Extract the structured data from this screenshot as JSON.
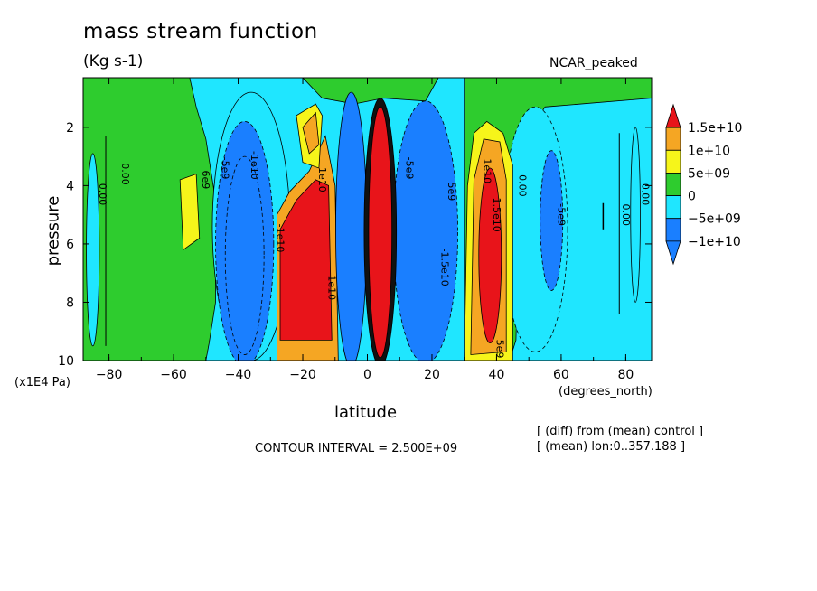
{
  "chart_data": {
    "type": "heatmap",
    "title": "mass stream function",
    "units": "(Kg s-1)",
    "model_label": "NCAR_peaked",
    "xlabel": "latitude",
    "x_unit": "(degrees_north)",
    "ylabel": "pressure",
    "y_unit": "(x1E4 Pa)",
    "xlim": [
      -88,
      88
    ],
    "ylim": [
      10,
      0.3
    ],
    "x_ticks": [
      -80,
      -60,
      -40,
      -20,
      0,
      20,
      40,
      60,
      80
    ],
    "x_tick_labels": [
      "−80",
      "−60",
      "−40",
      "−20",
      "0",
      "20",
      "40",
      "60",
      "80"
    ],
    "y_ticks": [
      2,
      4,
      6,
      8,
      10
    ],
    "y_tick_labels": [
      "2",
      "4",
      "6",
      "8",
      "10"
    ],
    "contour_interval_text": "CONTOUR INTERVAL = 2.500E+09",
    "notes": [
      "[ (diff) from (mean) control ]",
      "[ (mean) lon:0..357.188 ]"
    ],
    "colorbar": {
      "levels": [
        "1.5e+10",
        "1e+10",
        "5e+09",
        "0",
        "−5e+09",
        "−1e+10"
      ],
      "colors": [
        "#e8141a",
        "#f5a623",
        "#f6f51a",
        "#2ecc2e",
        "#1fe6ff",
        "#1a7fff",
        "#e8141a"
      ],
      "bin_colors_top_to_bottom": [
        "#e8141a",
        "#f5a623",
        "#f6f51a",
        "#2ecc2e",
        "#1fe6ff",
        "#1a7fff"
      ]
    },
    "cells": [
      {
        "lat": -85,
        "value": 2000000000.0
      },
      {
        "lat": -70,
        "value": 1500000000.0
      },
      {
        "lat": -55,
        "value": 6000000000.0
      },
      {
        "lat": -38,
        "value": -9000000000.0
      },
      {
        "lat": -20,
        "value": 18000000000.0
      },
      {
        "lat": -5,
        "value": -15000000000.0
      },
      {
        "lat": 4,
        "value": 20000000000.0
      },
      {
        "lat": 15,
        "value": -12000000000.0
      },
      {
        "lat": 30,
        "value": 7000000000.0
      },
      {
        "lat": 38,
        "value": 16000000000.0
      },
      {
        "lat": 55,
        "value": -5000000000.0
      },
      {
        "lat": 80,
        "value": -3000000000.0
      }
    ],
    "contour_labels": [
      {
        "text": "0.00",
        "lat": -83,
        "p": 4.3
      },
      {
        "text": "0.00",
        "lat": -76,
        "p": 3.6
      },
      {
        "text": "6e9",
        "lat": -51,
        "p": 3.8
      },
      {
        "text": "-5e9",
        "lat": -45,
        "p": 3.4
      },
      {
        "text": "-1e10",
        "lat": -36,
        "p": 3.3
      },
      {
        "text": "-1e10",
        "lat": -28,
        "p": 5.8
      },
      {
        "text": "1e10",
        "lat": -12,
        "p": 7.5
      },
      {
        "text": "1e10",
        "lat": -15,
        "p": 3.8
      },
      {
        "text": "-5e9",
        "lat": 12,
        "p": 3.4
      },
      {
        "text": "5e9",
        "lat": 25,
        "p": 4.2
      },
      {
        "text": "-1.5e10",
        "lat": 23,
        "p": 6.8
      },
      {
        "text": "1e10",
        "lat": 36,
        "p": 3.5
      },
      {
        "text": "1.5e10",
        "lat": 39,
        "p": 5.0
      },
      {
        "text": "0.00",
        "lat": 47,
        "p": 4.0
      },
      {
        "text": "-5e9",
        "lat": 59,
        "p": 5.0
      },
      {
        "text": "0.00",
        "lat": 79,
        "p": 5.0
      },
      {
        "text": "0.00",
        "lat": 85,
        "p": 4.3
      },
      {
        "text": "5e9",
        "lat": 40,
        "p": 9.6
      }
    ]
  }
}
